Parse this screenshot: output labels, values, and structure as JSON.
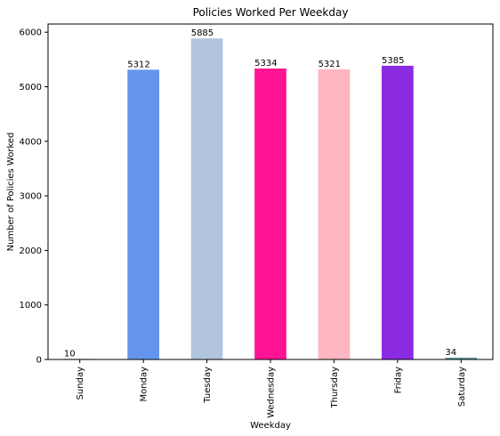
{
  "chart_data": {
    "type": "bar",
    "title": "Policies Worked Per Weekday",
    "xlabel": "Weekday",
    "ylabel": "Number of Policies Worked",
    "categories": [
      "Sunday",
      "Monday",
      "Tuesday",
      "Wednesday",
      "Thursday",
      "Friday",
      "Saturday"
    ],
    "values": [
      10,
      5312,
      5885,
      5334,
      5321,
      5385,
      34
    ],
    "colors": [
      "#1f77b4",
      "#6495ed",
      "#b0c4de",
      "#ff1493",
      "#ffb6c1",
      "#8a2be2",
      "#5f9ea0"
    ],
    "ylim": [
      0,
      6150
    ],
    "yticks": [
      0,
      1000,
      2000,
      3000,
      4000,
      5000,
      6000
    ],
    "grid": false,
    "legend": "none"
  }
}
